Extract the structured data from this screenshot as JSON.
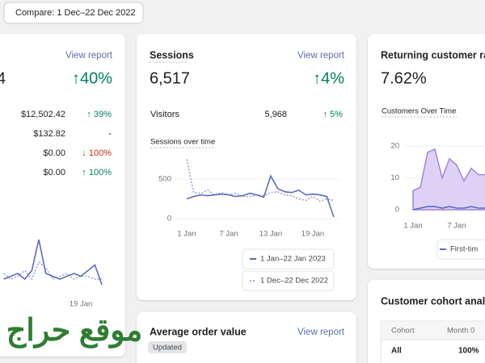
{
  "compare_button": "Compare: 1 Dec–22 Dec 2022",
  "sales_card": {
    "big_number": "4",
    "view_report": "View report",
    "change": {
      "text": "↑40%",
      "trend": "up"
    },
    "rows": [
      {
        "value": "$12,502.42",
        "change": "↑ 39%",
        "trend": "up"
      },
      {
        "value": "$132.82",
        "change": "-",
        "trend": "none"
      },
      {
        "value": "$0.00",
        "change": "↓ 100%",
        "trend": "down"
      },
      {
        "value": "$0.00",
        "change": "↑ 100%",
        "trend": "up"
      }
    ],
    "chart_data": {
      "type": "line",
      "xlim": [
        7,
        23
      ],
      "ylim": [
        0,
        100
      ],
      "xticks": [
        {
          "value": 19,
          "label": "19 Jan"
        }
      ],
      "series": [
        {
          "color": "#5c6ac4",
          "dashed": false,
          "x": [
            8,
            9,
            10,
            11,
            12,
            13,
            14,
            15,
            16,
            17,
            18,
            19,
            20,
            21,
            22
          ],
          "values": [
            20,
            25,
            30,
            20,
            35,
            90,
            30,
            25,
            20,
            25,
            30,
            25,
            35,
            45,
            10
          ]
        },
        {
          "color": "#9ca3d9",
          "dashed": true,
          "x": [
            8,
            9,
            10,
            11,
            12,
            13,
            14,
            15,
            16,
            17,
            18,
            19,
            20,
            21,
            22
          ],
          "values": [
            30,
            20,
            25,
            35,
            20,
            50,
            40,
            20,
            25,
            30,
            20,
            25,
            25,
            20,
            20
          ]
        }
      ]
    }
  },
  "sessions_card": {
    "title": "Sessions",
    "view_report": "View report",
    "big_number": "6,517",
    "change": {
      "text": "↑4%",
      "trend": "up"
    },
    "visitors": {
      "label": "Visitors",
      "value": "5,968",
      "change": "↑ 5%",
      "trend": "up"
    },
    "chart_title": "Sessions over time",
    "chart_data": {
      "type": "line",
      "xlim": [
        0,
        23
      ],
      "ylim": [
        0,
        800
      ],
      "yticks": [
        0,
        500
      ],
      "xticks": [
        {
          "value": 1,
          "label": "1 Jan"
        },
        {
          "value": 7,
          "label": "7 Jan"
        },
        {
          "value": 13,
          "label": "13 Jan"
        },
        {
          "value": 19,
          "label": "19 Jan"
        }
      ],
      "series": [
        {
          "name": "1 Jan–22 Jan 2023",
          "color": "#5c6ac4",
          "dashed": false,
          "x": [
            1,
            2,
            3,
            4,
            5,
            6,
            7,
            8,
            9,
            10,
            11,
            12,
            13,
            14,
            15,
            16,
            17,
            18,
            19,
            20,
            21,
            22
          ],
          "values": [
            250,
            280,
            300,
            290,
            300,
            310,
            300,
            280,
            290,
            320,
            300,
            270,
            540,
            380,
            340,
            330,
            360,
            300,
            310,
            300,
            280,
            20
          ]
        },
        {
          "name": "1 Dec–22 Dec 2022",
          "color": "#9ca3d9",
          "dashed": true,
          "x": [
            1,
            2,
            3,
            4,
            5,
            6,
            7,
            8,
            9,
            10,
            11,
            12,
            13,
            14,
            15,
            16,
            17,
            18,
            19,
            20,
            21,
            22
          ],
          "values": [
            750,
            330,
            320,
            360,
            300,
            330,
            300,
            320,
            280,
            280,
            300,
            290,
            330,
            340,
            300,
            290,
            250,
            230,
            280,
            220,
            250,
            230
          ]
        }
      ]
    }
  },
  "returning_card": {
    "title": "Returning customer ra",
    "big_number": "7.62%",
    "chart_title": "Customers Over Time",
    "chart_data": {
      "type": "area",
      "xlim": [
        0,
        11
      ],
      "ylim": [
        0,
        22
      ],
      "yticks": [
        0,
        10,
        20
      ],
      "xticks": [
        {
          "value": 1,
          "label": "1 Jan"
        },
        {
          "value": 7,
          "label": "7 Jan"
        }
      ],
      "series": [
        {
          "name": "First-tim",
          "color": "#5c6ac4",
          "fill": false,
          "x": [
            1,
            2,
            3,
            4,
            5,
            6,
            7,
            8,
            9,
            10,
            11
          ],
          "values": [
            0,
            0.5,
            1,
            1,
            0.5,
            1,
            0.5,
            0.5,
            1,
            0.5,
            0.5
          ]
        },
        {
          "color": "#9b7fe0",
          "fill": true,
          "x": [
            1,
            2,
            3,
            4,
            5,
            6,
            7,
            8,
            9,
            10,
            11
          ],
          "values": [
            6,
            7,
            18,
            19,
            10,
            16,
            14,
            9,
            13,
            11,
            11
          ]
        }
      ]
    }
  },
  "aov_card": {
    "title": "Average order value",
    "badge": "Updated",
    "view_report": "View report"
  },
  "cohort_card": {
    "title": "Customer cohort analy",
    "table": {
      "header": [
        "Cohort",
        "Month 0"
      ],
      "rows": [
        [
          "All",
          "100%"
        ]
      ]
    }
  },
  "watermark": "موقع حراج"
}
